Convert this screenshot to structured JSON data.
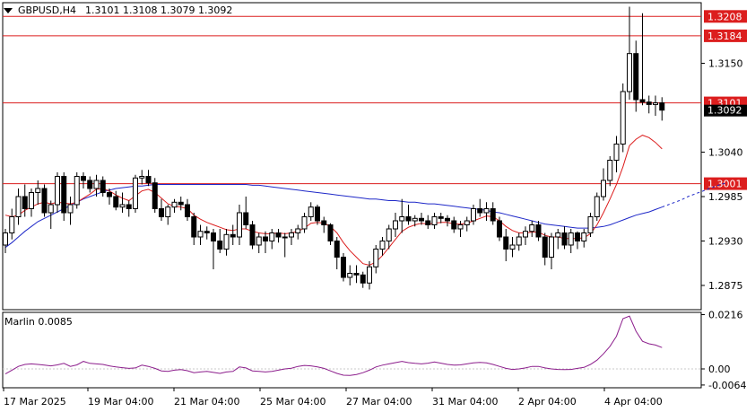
{
  "header": {
    "symbol_timeframe": "GBPUSD,H4",
    "ohlc": "1.3101 1.3108 1.3079 1.3092"
  },
  "colors": {
    "bull": "#000000",
    "bear": "#000000",
    "bull_fill": "#ffffff",
    "bear_fill": "#000000",
    "ma_fast": "#dc1e1e",
    "ma_slow": "#1e28c8",
    "oscillator": "#8c1e8c",
    "level_line": "#dc1e1e",
    "grid": "#000000"
  },
  "chart_data": {
    "type": "candlestick",
    "symbol": "GBPUSD",
    "timeframe": "H4",
    "ylim": [
      1.2845,
      1.3225
    ],
    "y_ticks": [
      "1.3150",
      "1.3040",
      "1.2985",
      "1.2930",
      "1.2875"
    ],
    "x_ticks": [
      "17 Mar 2025",
      "19 Mar 04:00",
      "21 Mar 04:00",
      "25 Mar 04:00",
      "27 Mar 04:00",
      "31 Mar 04:00",
      "2 Apr 04:00",
      "4 Apr 04:00"
    ],
    "levels": [
      {
        "value": 1.3208,
        "label": "1.3208"
      },
      {
        "value": 1.3184,
        "label": "1.3184"
      },
      {
        "value": 1.3101,
        "label": "1.3101"
      },
      {
        "value": 1.3001,
        "label": "1.3001"
      }
    ],
    "current_price": {
      "value": 1.3092,
      "label": "1.3092"
    },
    "candles": [
      [
        1.2925,
        1.2945,
        1.2915,
        1.294
      ],
      [
        1.294,
        1.297,
        1.2932,
        1.296
      ],
      [
        1.296,
        1.2995,
        1.295,
        1.2985
      ],
      [
        1.2985,
        1.3,
        1.296,
        1.297
      ],
      [
        1.297,
        1.2995,
        1.296,
        1.299
      ],
      [
        1.299,
        1.3005,
        1.2975,
        1.2995
      ],
      [
        1.2995,
        1.3,
        1.296,
        1.2965
      ],
      [
        1.2965,
        1.298,
        1.2945,
        1.2975
      ],
      [
        1.2975,
        1.3015,
        1.2965,
        1.301
      ],
      [
        1.301,
        1.3015,
        1.2955,
        1.2965
      ],
      [
        1.2965,
        1.2985,
        1.295,
        1.2975
      ],
      [
        1.2975,
        1.3015,
        1.297,
        1.301
      ],
      [
        1.301,
        1.3015,
        1.2995,
        1.3005
      ],
      [
        1.3005,
        1.301,
        1.299,
        1.2995
      ],
      [
        1.2995,
        1.3012,
        1.2985,
        1.3005
      ],
      [
        1.3005,
        1.301,
        1.2985,
        1.299
      ],
      [
        1.299,
        1.2995,
        1.2975,
        1.2985
      ],
      [
        1.2985,
        1.2992,
        1.2968,
        1.2972
      ],
      [
        1.2972,
        1.299,
        1.2965,
        1.2975
      ],
      [
        1.2975,
        1.298,
        1.296,
        1.297
      ],
      [
        1.297,
        1.3012,
        1.2965,
        1.3008
      ],
      [
        1.3008,
        1.3018,
        1.3,
        1.301
      ],
      [
        1.301,
        1.3018,
        1.2998,
        1.3002
      ],
      [
        1.3002,
        1.3008,
        1.2965,
        1.297
      ],
      [
        1.297,
        1.2982,
        1.2955,
        1.296
      ],
      [
        1.296,
        1.2975,
        1.295,
        1.2972
      ],
      [
        1.2972,
        1.2982,
        1.2965,
        1.2978
      ],
      [
        1.2978,
        1.2985,
        1.2968,
        1.2975
      ],
      [
        1.2975,
        1.2982,
        1.2955,
        1.296
      ],
      [
        1.296,
        1.2965,
        1.2925,
        1.2935
      ],
      [
        1.2935,
        1.295,
        1.2925,
        1.2942
      ],
      [
        1.2942,
        1.2948,
        1.2932,
        1.294
      ],
      [
        1.294,
        1.2945,
        1.2895,
        1.293
      ],
      [
        1.293,
        1.2945,
        1.2915,
        1.292
      ],
      [
        1.292,
        1.2945,
        1.2912,
        1.2938
      ],
      [
        1.2938,
        1.295,
        1.2925,
        1.2935
      ],
      [
        1.2935,
        1.2975,
        1.2925,
        1.2965
      ],
      [
        1.2965,
        1.2985,
        1.2945,
        1.295
      ],
      [
        1.295,
        1.2955,
        1.292,
        1.2925
      ],
      [
        1.2925,
        1.294,
        1.2915,
        1.2935
      ],
      [
        1.2935,
        1.2942,
        1.2915,
        1.293
      ],
      [
        1.293,
        1.2945,
        1.292,
        1.294
      ],
      [
        1.294,
        1.2945,
        1.2928,
        1.2935
      ],
      [
        1.2935,
        1.294,
        1.291,
        1.2935
      ],
      [
        1.2935,
        1.2945,
        1.2925,
        1.294
      ],
      [
        1.294,
        1.295,
        1.2932,
        1.2945
      ],
      [
        1.2945,
        1.2965,
        1.294,
        1.296
      ],
      [
        1.296,
        1.2978,
        1.2955,
        1.2972
      ],
      [
        1.2972,
        1.2975,
        1.295,
        1.2955
      ],
      [
        1.2955,
        1.296,
        1.294,
        1.295
      ],
      [
        1.295,
        1.2952,
        1.2925,
        1.293
      ],
      [
        1.293,
        1.2935,
        1.2895,
        1.291
      ],
      [
        1.291,
        1.2915,
        1.288,
        1.2885
      ],
      [
        1.2885,
        1.29,
        1.2875,
        1.289
      ],
      [
        1.289,
        1.29,
        1.2878,
        1.2888
      ],
      [
        1.2888,
        1.2892,
        1.2872,
        1.2878
      ],
      [
        1.2878,
        1.2905,
        1.287,
        1.2898
      ],
      [
        1.2898,
        1.2925,
        1.289,
        1.292
      ],
      [
        1.292,
        1.2935,
        1.2912,
        1.293
      ],
      [
        1.293,
        1.295,
        1.292,
        1.2945
      ],
      [
        1.2945,
        1.2965,
        1.2935,
        1.2955
      ],
      [
        1.2955,
        1.2982,
        1.294,
        1.296
      ],
      [
        1.296,
        1.2975,
        1.295,
        1.2955
      ],
      [
        1.2955,
        1.2962,
        1.2948,
        1.2958
      ],
      [
        1.2958,
        1.2965,
        1.295,
        1.2955
      ],
      [
        1.2955,
        1.2962,
        1.2945,
        1.295
      ],
      [
        1.295,
        1.2965,
        1.2945,
        1.296
      ],
      [
        1.296,
        1.2965,
        1.2952,
        1.2958
      ],
      [
        1.2958,
        1.2962,
        1.2948,
        1.2955
      ],
      [
        1.2955,
        1.296,
        1.294,
        1.2945
      ],
      [
        1.2945,
        1.2955,
        1.2935,
        1.295
      ],
      [
        1.295,
        1.296,
        1.2942,
        1.2955
      ],
      [
        1.2955,
        1.2975,
        1.295,
        1.297
      ],
      [
        1.297,
        1.2982,
        1.296,
        1.2965
      ],
      [
        1.2965,
        1.2978,
        1.2955,
        1.297
      ],
      [
        1.297,
        1.2978,
        1.295,
        1.2955
      ],
      [
        1.2955,
        1.296,
        1.293,
        1.2935
      ],
      [
        1.2935,
        1.2945,
        1.2905,
        1.292
      ],
      [
        1.292,
        1.2935,
        1.291,
        1.2925
      ],
      [
        1.2925,
        1.294,
        1.2918,
        1.2935
      ],
      [
        1.2935,
        1.2948,
        1.2925,
        1.2942
      ],
      [
        1.2942,
        1.2955,
        1.2935,
        1.295
      ],
      [
        1.295,
        1.2955,
        1.293,
        1.2935
      ],
      [
        1.2935,
        1.294,
        1.29,
        1.291
      ],
      [
        1.291,
        1.294,
        1.2895,
        1.2935
      ],
      [
        1.2935,
        1.2945,
        1.292,
        1.294
      ],
      [
        1.294,
        1.2948,
        1.292,
        1.2925
      ],
      [
        1.2925,
        1.2945,
        1.2915,
        1.294
      ],
      [
        1.294,
        1.2942,
        1.292,
        1.293
      ],
      [
        1.293,
        1.2945,
        1.2922,
        1.294
      ],
      [
        1.294,
        1.2965,
        1.2935,
        1.296
      ],
      [
        1.296,
        1.299,
        1.2955,
        1.2985
      ],
      [
        1.2985,
        1.302,
        1.298,
        1.3005
      ],
      [
        1.3005,
        1.3035,
        1.2998,
        1.303
      ],
      [
        1.303,
        1.306,
        1.3015,
        1.305
      ],
      [
        1.305,
        1.3125,
        1.304,
        1.3115
      ],
      [
        1.3115,
        1.322,
        1.3105,
        1.3162
      ],
      [
        1.3162,
        1.3178,
        1.309,
        1.3105
      ],
      [
        1.3105,
        1.3212,
        1.3098,
        1.3102
      ],
      [
        1.3102,
        1.311,
        1.3088,
        1.3099
      ],
      [
        1.3099,
        1.311,
        1.3085,
        1.3101
      ],
      [
        1.3101,
        1.3108,
        1.3079,
        1.3092
      ]
    ],
    "ma_fast": [
      1.2962,
      1.296,
      1.2962,
      1.2968,
      1.2972,
      1.2976,
      1.2978,
      1.2976,
      1.2978,
      1.2977,
      1.2976,
      1.2978,
      1.2983,
      1.2988,
      1.2994,
      1.2995,
      1.2992,
      1.2987,
      1.2983,
      1.298,
      1.2986,
      1.2992,
      1.2994,
      1.299,
      1.2983,
      1.2976,
      1.2973,
      1.2972,
      1.297,
      1.2962,
      1.2957,
      1.2953,
      1.295,
      1.2947,
      1.2944,
      1.2943,
      1.2945,
      1.2945,
      1.2942,
      1.294,
      1.2939,
      1.2939,
      1.294,
      1.2939,
      1.294,
      1.2942,
      1.2946,
      1.2952,
      1.2953,
      1.2952,
      1.2948,
      1.294,
      1.2928,
      1.2918,
      1.291,
      1.2902,
      1.29,
      1.2904,
      1.2912,
      1.2922,
      1.2932,
      1.2942,
      1.2947,
      1.295,
      1.2952,
      1.2951,
      1.2952,
      1.2953,
      1.2953,
      1.2951,
      1.2951,
      1.2952,
      1.2955,
      1.2958,
      1.2961,
      1.296,
      1.2955,
      1.2948,
      1.2943,
      1.294,
      1.294,
      1.2941,
      1.2941,
      1.2937,
      1.2935,
      1.2935,
      1.2933,
      1.2933,
      1.2933,
      1.2934,
      1.2939,
      1.295,
      1.2965,
      1.2982,
      1.3,
      1.3022,
      1.3048,
      1.3056,
      1.3061,
      1.3058,
      1.3052,
      1.3044
    ],
    "ma_slow": [
      1.2922,
      1.2928,
      1.2935,
      1.2942,
      1.2948,
      1.2954,
      1.2958,
      1.2962,
      1.2966,
      1.297,
      1.2974,
      1.2978,
      1.2982,
      1.2985,
      1.2988,
      1.2991,
      1.2993,
      1.2995,
      1.2996,
      1.2997,
      1.2998,
      1.2998,
      1.2999,
      1.3,
      1.3,
      1.3,
      1.3,
      1.3,
      1.3,
      1.3,
      1.3,
      1.3,
      1.3,
      1.3,
      1.3,
      1.3,
      1.3,
      1.3,
      1.2999,
      1.2999,
      1.2998,
      1.2997,
      1.2996,
      1.2995,
      1.2994,
      1.2993,
      1.2992,
      1.2991,
      1.299,
      1.2989,
      1.2988,
      1.2987,
      1.2986,
      1.2985,
      1.2984,
      1.2983,
      1.2982,
      1.2982,
      1.2981,
      1.298,
      1.298,
      1.2979,
      1.2978,
      1.2978,
      1.2977,
      1.2976,
      1.2976,
      1.2975,
      1.2974,
      1.2973,
      1.2972,
      1.2971,
      1.297,
      1.2969,
      1.2968,
      1.2966,
      1.2965,
      1.2963,
      1.2961,
      1.2959,
      1.2957,
      1.2955,
      1.2953,
      1.2951,
      1.295,
      1.2949,
      1.2948,
      1.2947,
      1.2946,
      1.2946,
      1.2946,
      1.2947,
      1.2948,
      1.295,
      1.2953,
      1.2956,
      1.2959,
      1.2962,
      1.2964,
      1.2966,
      1.2969,
      1.2972,
      1.2975,
      1.2978,
      1.2981,
      1.2985,
      1.2988,
      1.2991,
      1.2994,
      1.2997,
      1.3,
      1.3002
    ],
    "ma_slow_solid_count": 102,
    "oscillator": {
      "name": "Marlin",
      "value_label": "Marlin 0.0085",
      "ylim": [
        -0.0075,
        0.0225
      ],
      "y_ticks": [
        "0.0216",
        "0.00",
        "-0.0064"
      ],
      "values": [
        -0.002,
        -0.0005,
        0.001,
        0.0018,
        0.002,
        0.0018,
        0.0015,
        0.0012,
        0.0016,
        0.0022,
        0.001,
        0.0016,
        0.003,
        0.0022,
        0.002,
        0.0018,
        0.0012,
        0.0008,
        0.0005,
        0.0002,
        0.0004,
        0.0015,
        0.001,
        0.0002,
        -0.0008,
        -0.001,
        -0.0005,
        -0.0003,
        -0.0007,
        -0.0015,
        -0.0012,
        -0.001,
        -0.0014,
        -0.0018,
        -0.0012,
        -0.001,
        0.0008,
        0.0004,
        -0.0008,
        -0.001,
        -0.0012,
        -0.001,
        -0.0005,
        0.0,
        0.0003,
        0.001,
        0.0014,
        0.0012,
        0.0008,
        0.0002,
        -0.0008,
        -0.0018,
        -0.0025,
        -0.0026,
        -0.0022,
        -0.0015,
        -0.0005,
        0.0008,
        0.0015,
        0.002,
        0.0025,
        0.003,
        0.0025,
        0.0022,
        0.002,
        0.0023,
        0.0028,
        0.0023,
        0.0018,
        0.0015,
        0.0016,
        0.002,
        0.0024,
        0.0026,
        0.0024,
        0.0018,
        0.001,
        0.0002,
        -0.0002,
        0.0,
        0.0004,
        0.001,
        0.001,
        0.0004,
        0.0,
        -0.0002,
        -0.0003,
        -0.0002,
        0.0002,
        0.0006,
        0.0018,
        0.0035,
        0.006,
        0.009,
        0.013,
        0.02,
        0.021,
        0.015,
        0.011,
        0.01,
        0.0095,
        0.0085
      ]
    }
  }
}
